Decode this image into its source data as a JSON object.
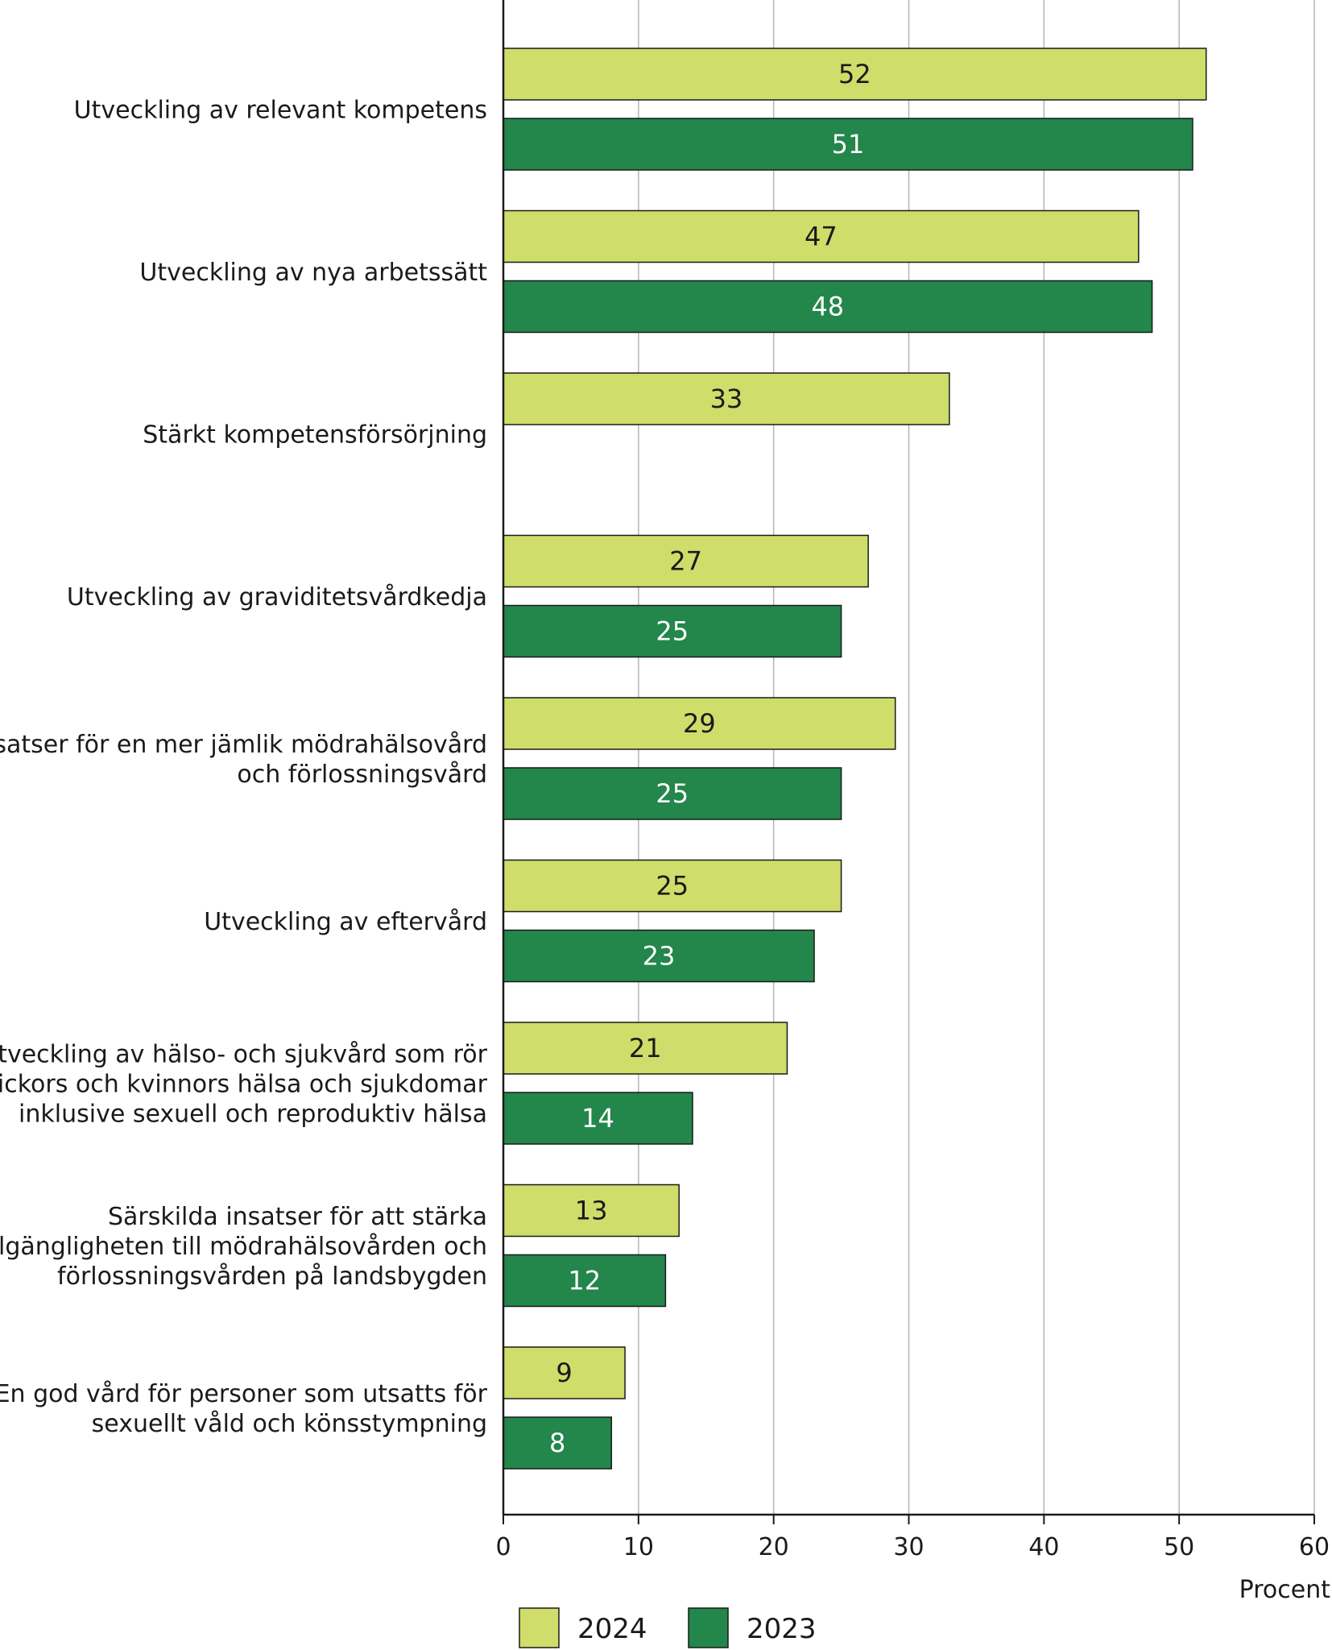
{
  "chart_data": {
    "type": "bar",
    "orientation": "horizontal",
    "categories": [
      [
        "Utveckling av relevant kompetens"
      ],
      [
        "Utveckling av nya arbetssätt"
      ],
      [
        "Stärkt kompetensförsörjning"
      ],
      [
        "Utveckling av graviditetsvårdkedja"
      ],
      [
        "Insatser för en mer jämlik mödrahälsovård",
        "och förlossningsvård"
      ],
      [
        "Utveckling av eftervård"
      ],
      [
        "Utveckling av hälso- och sjukvård som rör",
        "flickors och kvinnors hälsa och sjukdomar",
        "inklusive sexuell och reproduktiv hälsa"
      ],
      [
        "Särskilda insatser för att stärka",
        "tillgängligheten till mödrahälsovården och",
        "förlossningsvården på landsbygden"
      ],
      [
        "En god vård för personer som utsatts för",
        "sexuellt våld och könsstympning"
      ]
    ],
    "series": [
      {
        "name": "2024",
        "color": "#cfdd6a",
        "values": [
          52,
          47,
          33,
          27,
          29,
          25,
          21,
          13,
          9
        ]
      },
      {
        "name": "2023",
        "color": "#23864a",
        "values": [
          51,
          48,
          null,
          25,
          25,
          23,
          14,
          12,
          8
        ]
      }
    ],
    "xlabel": "Procent",
    "xlim": [
      0,
      60
    ],
    "xticks": [
      0,
      10,
      20,
      30,
      40,
      50,
      60
    ],
    "grid": true,
    "legend_position": "bottom"
  }
}
